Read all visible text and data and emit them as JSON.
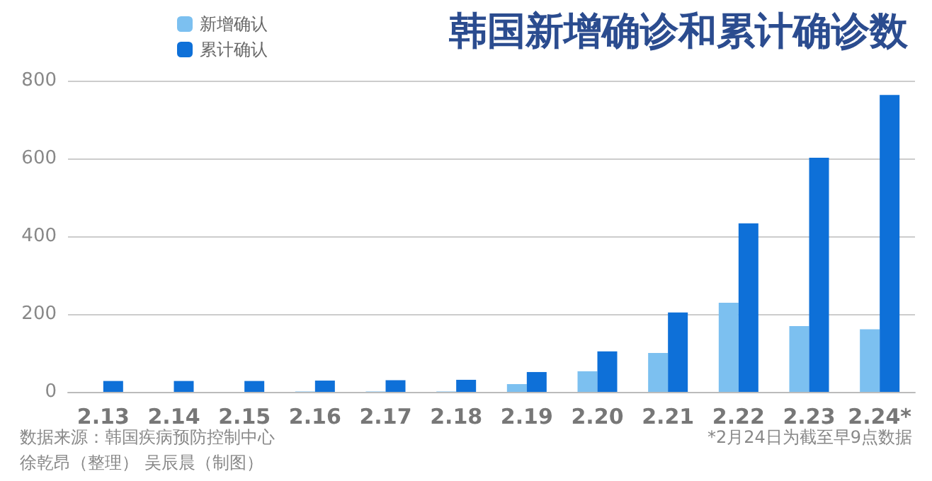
{
  "chart_data": {
    "type": "bar",
    "title": "韩国新增确诊和累计确诊数",
    "categories": [
      "2.13",
      "2.14",
      "2.15",
      "2.16",
      "2.17",
      "2.18",
      "2.19",
      "2.20",
      "2.21",
      "2.22",
      "2.23",
      "2.24*"
    ],
    "series": [
      {
        "name": "新增确认",
        "color": "#7cc0f0",
        "values": [
          0,
          0,
          0,
          1,
          1,
          1,
          20,
          53,
          100,
          229,
          169,
          161
        ]
      },
      {
        "name": "累计确认",
        "color": "#0e70d8",
        "values": [
          28,
          28,
          28,
          29,
          30,
          31,
          51,
          104,
          204,
          433,
          602,
          763
        ]
      }
    ],
    "ylim": [
      0,
      800
    ],
    "yticks": [
      0,
      200,
      400,
      600,
      800
    ],
    "grid": "y",
    "legend": "top",
    "annotations": [
      "数据来源：韩国疾病预防控制中心",
      "徐乾昂（整理） 吴辰晨（制图）",
      "*2月24日为截至早9点数据"
    ]
  }
}
